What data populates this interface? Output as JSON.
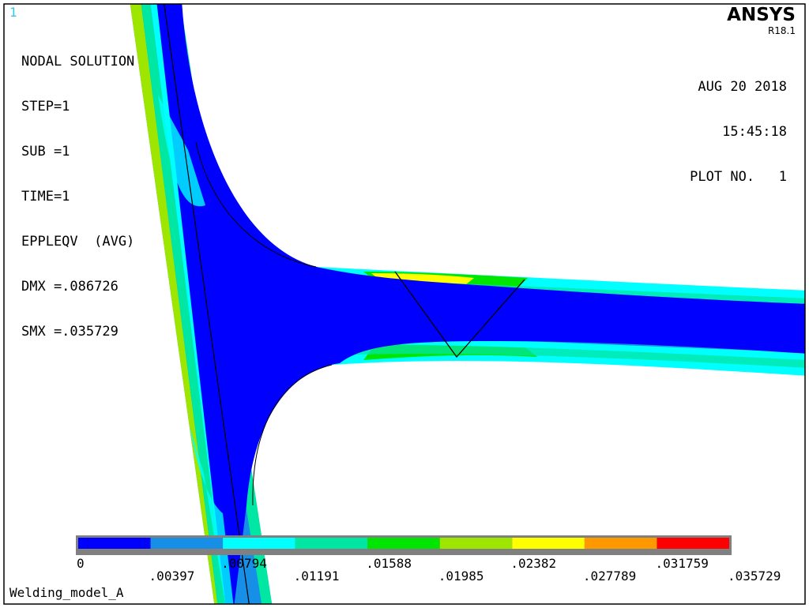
{
  "window_number": "1",
  "solution": {
    "title": "NODAL SOLUTION",
    "lines": [
      "STEP=1",
      "SUB =1",
      "TIME=1",
      "EPPLEQV  (AVG)",
      "DMX =.086726",
      "SMX =.035729"
    ]
  },
  "brand": {
    "name": "ANSYS",
    "version": "R18.1"
  },
  "plot_info": {
    "date": "AUG 20 2018",
    "time": "15:45:18",
    "plot_no": "PLOT NO.   1"
  },
  "legend": {
    "colors": [
      "#0000ff",
      "#178fe6",
      "#00ffff",
      "#00e6a3",
      "#00e600",
      "#9ee600",
      "#ffff00",
      "#ff9900",
      "#ff0000"
    ],
    "labels": [
      "0",
      ".00397",
      ".00794",
      ".01191",
      ".01588",
      ".01985",
      ".02382",
      ".027789",
      ".031759",
      ".035729"
    ]
  },
  "model_title": "Welding_model_A"
}
